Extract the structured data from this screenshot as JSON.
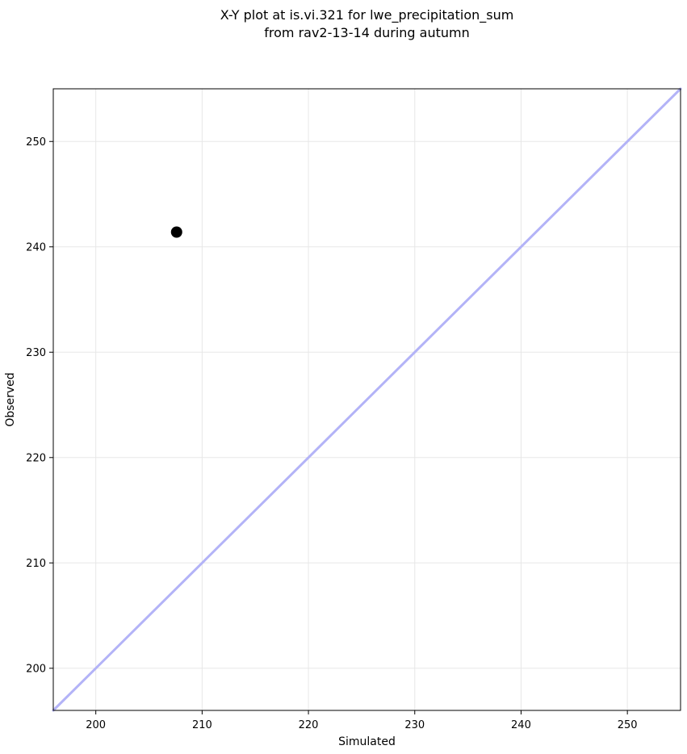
{
  "figure": {
    "title_line1": "X-Y plot at is.vi.321 for lwe_precipitation_sum",
    "title_line2": "from rav2-13-14 during autumn"
  },
  "chart_data": {
    "type": "scatter",
    "title": "X-Y plot at is.vi.321 for lwe_precipitation_sum\nfrom rav2-13-14 during autumn",
    "xlabel": "Simulated",
    "ylabel": "Observed",
    "xlim": [
      196,
      255
    ],
    "ylim": [
      196,
      255
    ],
    "xticks": [
      200,
      210,
      220,
      230,
      240,
      250
    ],
    "yticks": [
      200,
      210,
      220,
      230,
      240,
      250
    ],
    "grid": true,
    "legend": "none",
    "series": [
      {
        "name": "identity-line",
        "type": "line",
        "color": "#b3b3f7",
        "width": 3,
        "points": [
          {
            "x": 196,
            "y": 196
          },
          {
            "x": 255,
            "y": 255
          }
        ]
      },
      {
        "name": "observations",
        "type": "scatter",
        "color": "#000000",
        "marker_size": 7,
        "points": [
          {
            "x": 207.6,
            "y": 241.4
          }
        ]
      }
    ],
    "colors": {
      "grid": "#e7e7e7",
      "spine": "#000000",
      "tick_label": "#000000",
      "background": "#ffffff"
    }
  }
}
